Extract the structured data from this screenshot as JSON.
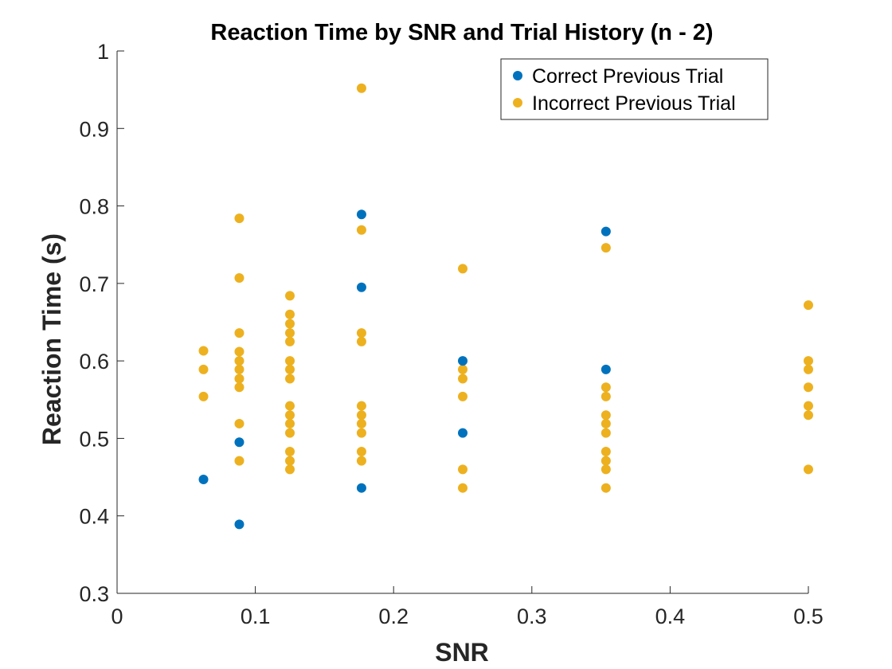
{
  "chart_data": {
    "type": "scatter",
    "title": "Reaction Time by SNR and Trial History (n - 2)",
    "xlabel": "SNR",
    "ylabel": "Reaction Time (s)",
    "xlim": [
      0,
      0.5
    ],
    "ylim": [
      0.3,
      1.0
    ],
    "xticks": [
      "0",
      "0.1",
      "0.2",
      "0.3",
      "0.4",
      "0.5"
    ],
    "yticks": [
      "0.3",
      "0.4",
      "0.5",
      "0.6",
      "0.7",
      "0.8",
      "0.9",
      "1"
    ],
    "grid": false,
    "legend_position": "top-right",
    "series": [
      {
        "name": "Correct Previous Trial",
        "color": "#0072BD",
        "points": [
          [
            0.0625,
            0.447
          ],
          [
            0.0884,
            0.495
          ],
          [
            0.0884,
            0.389
          ],
          [
            0.1768,
            0.789
          ],
          [
            0.1768,
            0.695
          ],
          [
            0.1768,
            0.436
          ],
          [
            0.25,
            0.6
          ],
          [
            0.25,
            0.507
          ],
          [
            0.3536,
            0.767
          ],
          [
            0.3536,
            0.589
          ]
        ]
      },
      {
        "name": "Incorrect Previous Trial",
        "color": "#EDB120",
        "points": [
          [
            0.0625,
            0.613
          ],
          [
            0.0625,
            0.589
          ],
          [
            0.0625,
            0.554
          ],
          [
            0.0884,
            0.784
          ],
          [
            0.0884,
            0.707
          ],
          [
            0.0884,
            0.636
          ],
          [
            0.0884,
            0.612
          ],
          [
            0.0884,
            0.6
          ],
          [
            0.0884,
            0.589
          ],
          [
            0.0884,
            0.577
          ],
          [
            0.0884,
            0.566
          ],
          [
            0.0884,
            0.519
          ],
          [
            0.0884,
            0.471
          ],
          [
            0.125,
            0.684
          ],
          [
            0.125,
            0.66
          ],
          [
            0.125,
            0.648
          ],
          [
            0.125,
            0.636
          ],
          [
            0.125,
            0.625
          ],
          [
            0.125,
            0.6
          ],
          [
            0.125,
            0.589
          ],
          [
            0.125,
            0.577
          ],
          [
            0.125,
            0.542
          ],
          [
            0.125,
            0.53
          ],
          [
            0.125,
            0.519
          ],
          [
            0.125,
            0.507
          ],
          [
            0.125,
            0.483
          ],
          [
            0.125,
            0.471
          ],
          [
            0.125,
            0.46
          ],
          [
            0.1768,
            0.952
          ],
          [
            0.1768,
            0.769
          ],
          [
            0.1768,
            0.636
          ],
          [
            0.1768,
            0.625
          ],
          [
            0.1768,
            0.542
          ],
          [
            0.1768,
            0.53
          ],
          [
            0.1768,
            0.519
          ],
          [
            0.1768,
            0.507
          ],
          [
            0.1768,
            0.483
          ],
          [
            0.1768,
            0.471
          ],
          [
            0.25,
            0.719
          ],
          [
            0.25,
            0.589
          ],
          [
            0.25,
            0.577
          ],
          [
            0.25,
            0.554
          ],
          [
            0.25,
            0.46
          ],
          [
            0.25,
            0.436
          ],
          [
            0.3536,
            0.746
          ],
          [
            0.3536,
            0.566
          ],
          [
            0.3536,
            0.554
          ],
          [
            0.3536,
            0.53
          ],
          [
            0.3536,
            0.519
          ],
          [
            0.3536,
            0.507
          ],
          [
            0.3536,
            0.483
          ],
          [
            0.3536,
            0.471
          ],
          [
            0.3536,
            0.46
          ],
          [
            0.3536,
            0.436
          ],
          [
            0.5,
            0.672
          ],
          [
            0.5,
            0.6
          ],
          [
            0.5,
            0.589
          ],
          [
            0.5,
            0.566
          ],
          [
            0.5,
            0.542
          ],
          [
            0.5,
            0.53
          ],
          [
            0.5,
            0.46
          ]
        ]
      }
    ]
  }
}
